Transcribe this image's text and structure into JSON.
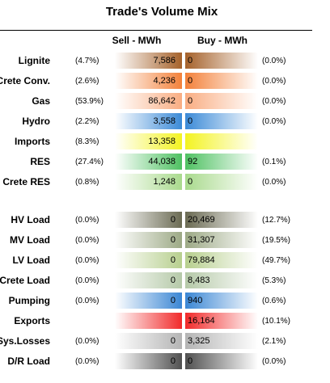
{
  "title": "Trade's Volume Mix",
  "headers": {
    "sell": "Sell - MWh",
    "buy": "Buy - MWh"
  },
  "rows": [
    {
      "label": "Lignite",
      "sell_pct": "(4.7%)",
      "sell": "7,586",
      "buy": "0",
      "buy_pct": "(0.0%)",
      "color": "#a5612a"
    },
    {
      "label": "Crete Conv.",
      "sell_pct": "(2.6%)",
      "sell": "4,236",
      "buy": "0",
      "buy_pct": "(0.0%)",
      "color": "#f3813a"
    },
    {
      "label": "Gas",
      "sell_pct": "(53.9%)",
      "sell": "86,642",
      "buy": "0",
      "buy_pct": "(0.0%)",
      "color": "#f9ad82"
    },
    {
      "label": "Hydro",
      "sell_pct": "(2.2%)",
      "sell": "3,558",
      "buy": "0",
      "buy_pct": "(0.0%)",
      "color": "#3b8ad7"
    },
    {
      "label": "Imports",
      "sell_pct": "(8.3%)",
      "sell": "13,358",
      "buy": "",
      "buy_pct": "",
      "color": "#f3f322"
    },
    {
      "label": "RES",
      "sell_pct": "(27.4%)",
      "sell": "44,038",
      "buy": "92",
      "buy_pct": "(0.1%)",
      "color": "#4fc162"
    },
    {
      "label": "Crete RES",
      "sell_pct": "(0.8%)",
      "sell": "1,248",
      "buy": "0",
      "buy_pct": "(0.0%)",
      "color": "#a9da8d"
    },
    {
      "label": "HV Load",
      "sell_pct": "(0.0%)",
      "sell": "0",
      "buy": "20,469",
      "buy_pct": "(12.7%)",
      "color": "#6a6a52"
    },
    {
      "label": "MV Load",
      "sell_pct": "(0.0%)",
      "sell": "0",
      "buy": "31,307",
      "buy_pct": "(19.5%)",
      "color": "#9ca985"
    },
    {
      "label": "LV Load",
      "sell_pct": "(0.0%)",
      "sell": "0",
      "buy": "79,884",
      "buy_pct": "(49.7%)",
      "color": "#b7cf8e"
    },
    {
      "label": "Crete Load",
      "sell_pct": "(0.0%)",
      "sell": "0",
      "buy": "8,483",
      "buy_pct": "(5.3%)",
      "color": "#b5c9a8"
    },
    {
      "label": "Pumping",
      "sell_pct": "(0.0%)",
      "sell": "0",
      "buy": "940",
      "buy_pct": "(0.6%)",
      "color": "#3a86d4"
    },
    {
      "label": "Exports",
      "sell_pct": "",
      "sell": "",
      "buy": "16,164",
      "buy_pct": "(10.1%)",
      "color": "#f12a2a"
    },
    {
      "label": "Sys.Losses",
      "sell_pct": "(0.0%)",
      "sell": "0",
      "buy": "3,325",
      "buy_pct": "(2.1%)",
      "color": "#b4b4b4"
    },
    {
      "label": "D/R Load",
      "sell_pct": "(0.0%)",
      "sell": "0",
      "buy": "0",
      "buy_pct": "(0.0%)",
      "color": "#505050"
    }
  ]
}
